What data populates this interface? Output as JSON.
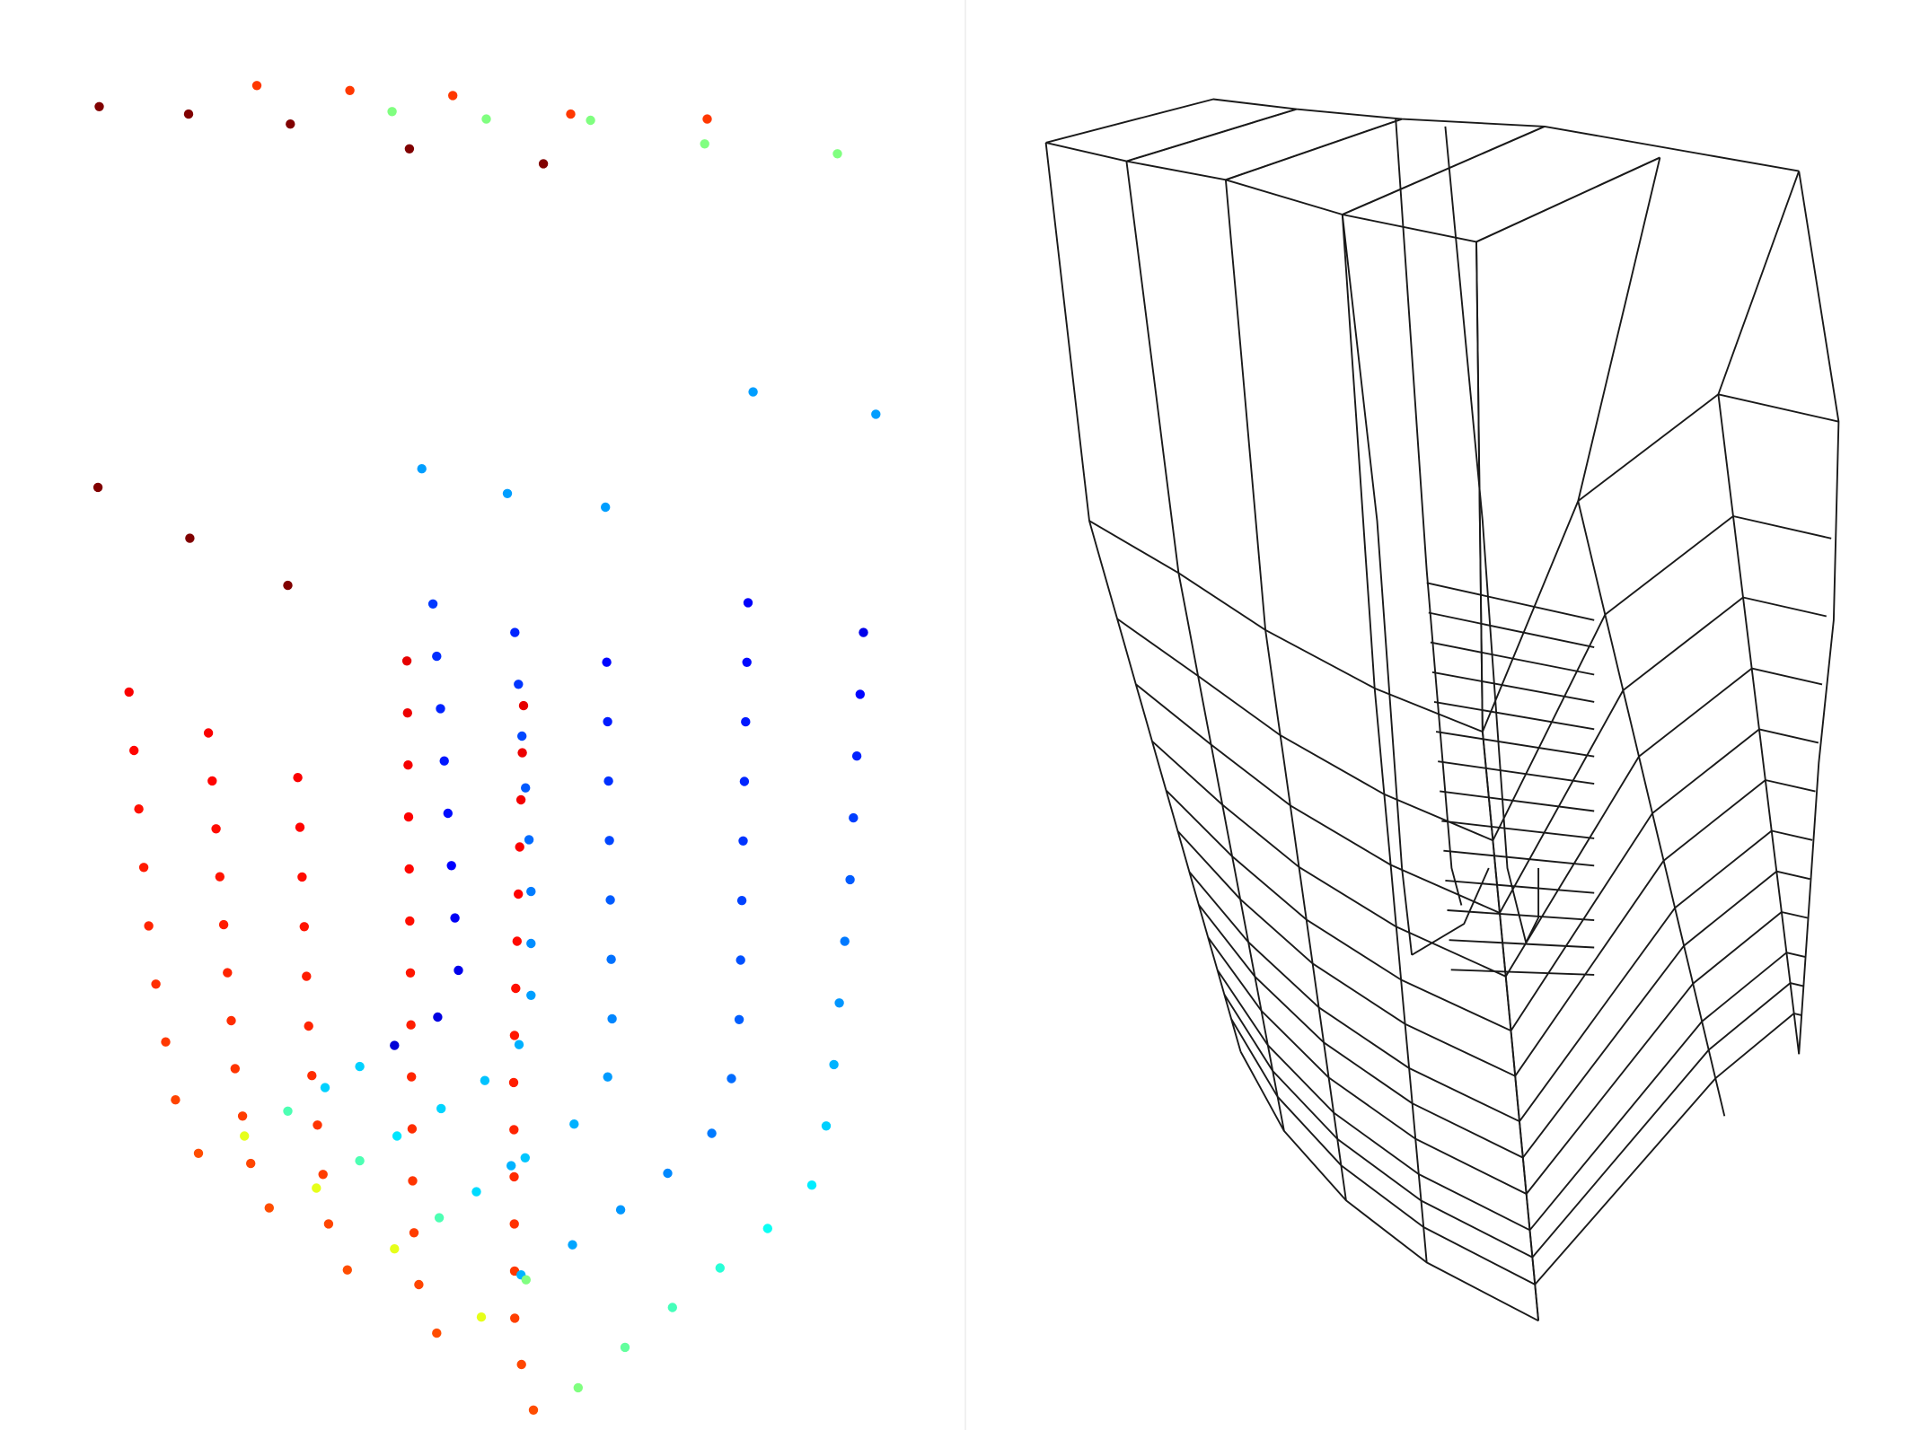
{
  "figure": {
    "left_panel": {
      "kind": "point-cloud",
      "colormap": "jet",
      "colormap_stops": [
        "#00008f",
        "#0000ff",
        "#0080ff",
        "#00ffff",
        "#80ff80",
        "#ffff00",
        "#ff8000",
        "#ff0000",
        "#800000"
      ],
      "point_count": 230
    },
    "right_panel": {
      "kind": "wireframe-mesh",
      "stroke_color": "#1a1a1a",
      "bands": 5,
      "rows_per_column": 17
    }
  }
}
